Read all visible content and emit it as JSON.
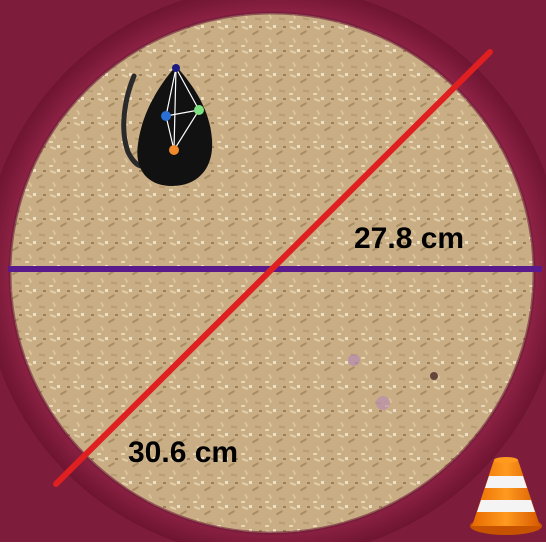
{
  "measurements": {
    "horizontal_label": "27.8 cm",
    "diagonal_label": "30.6 cm"
  },
  "colors": {
    "arena_rim": "#8a1f3f",
    "bedding": "#c9ad84",
    "horizontal_line": "#5a1a8c",
    "diagonal_line": "#e02020",
    "mouse": "#111111",
    "keypoint_nose": "#1a1a80",
    "keypoint_left_ear": "#2a6fd6",
    "keypoint_right_ear": "#7fe07f",
    "keypoint_tail_base": "#f08a2a"
  },
  "icons": {
    "corner_logo": "traffic-cone-icon"
  }
}
